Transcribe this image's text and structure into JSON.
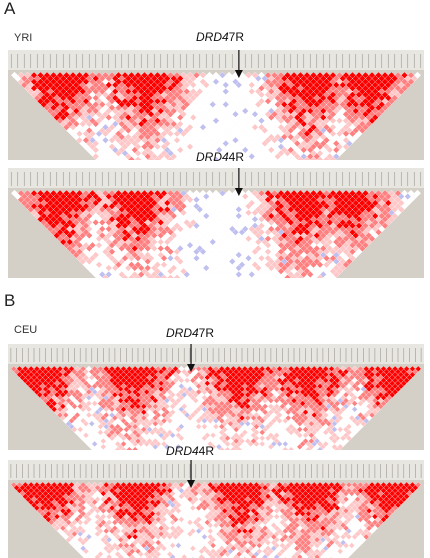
{
  "panels": [
    {
      "letter": "A",
      "population": "YRI",
      "tracks": [
        {
          "snp_prefix": "DRD4",
          "snp_suffix": "7R",
          "seed": 11
        },
        {
          "snp_prefix": "DRD4",
          "snp_suffix": "4R",
          "seed": 23
        }
      ]
    },
    {
      "letter": "B",
      "population": "CEU",
      "tracks": [
        {
          "snp_prefix": "DRD4",
          "snp_suffix": "7R",
          "seed": 37
        },
        {
          "snp_prefix": "DRD4",
          "snp_suffix": "4R",
          "seed": 53
        }
      ]
    }
  ],
  "colors": {
    "strong_ld": "#ff0000",
    "moderate_ld": "#ff8080",
    "weak_ld": "#ffc8c8",
    "low_lod": "#c0c0f0",
    "none": "#ffffff",
    "background": "#d4d0c8",
    "tick_bar": "#e8e6e0"
  }
}
